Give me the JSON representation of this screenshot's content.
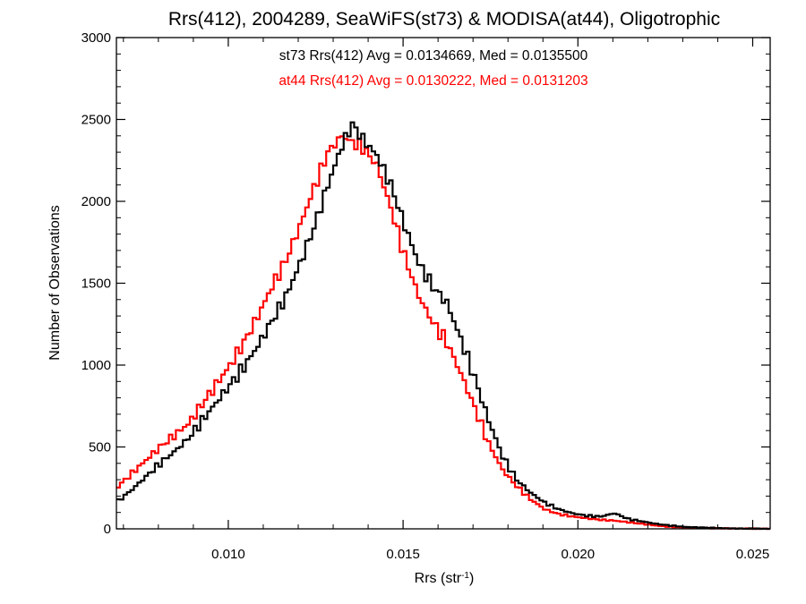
{
  "chart_data": {
    "type": "line",
    "title": "Rrs(412), 2004289, SeaWiFS(st73) & MODISA(at44), Oligotrophic",
    "xlabel_base": "Rrs (str",
    "xlabel_sup": "-1",
    "xlabel_close": ")",
    "ylabel": "Number of Observations",
    "xlim": [
      0.0068,
      0.0255
    ],
    "ylim": [
      0,
      3000
    ],
    "x_ticks": [
      0.01,
      0.015,
      0.02,
      0.025
    ],
    "x_tick_labels": [
      "0.010",
      "0.015",
      "0.020",
      "0.025"
    ],
    "y_ticks": [
      0,
      500,
      1000,
      1500,
      2000,
      2500,
      3000
    ],
    "y_tick_labels": [
      "0",
      "500",
      "1000",
      "1500",
      "2000",
      "2500",
      "3000"
    ],
    "grid": false,
    "annotations": [
      {
        "text": "st73 Rrs(412) Avg = 0.0134669, Med = 0.0135500",
        "color": "#000000"
      },
      {
        "text": "at44 Rrs(412) Avg = 0.0130222, Med = 0.0131203",
        "color": "#ff0000"
      }
    ],
    "series": [
      {
        "color": "#000000",
        "x": [
          0.0068,
          0.0072,
          0.0076,
          0.008,
          0.0084,
          0.0088,
          0.0092,
          0.0096,
          0.01,
          0.0104,
          0.0108,
          0.0112,
          0.0116,
          0.012,
          0.0124,
          0.0128,
          0.0132,
          0.0135,
          0.0138,
          0.0142,
          0.0146,
          0.015,
          0.0154,
          0.0158,
          0.0162,
          0.0166,
          0.017,
          0.0174,
          0.0178,
          0.0182,
          0.0186,
          0.019,
          0.0194,
          0.0198,
          0.0202,
          0.0206,
          0.021,
          0.0214,
          0.0218,
          0.0222,
          0.0226,
          0.023,
          0.0235,
          0.024,
          0.0245,
          0.025,
          0.0255
        ],
        "y": [
          170,
          240,
          320,
          400,
          470,
          550,
          660,
          770,
          880,
          990,
          1120,
          1270,
          1420,
          1620,
          1840,
          2100,
          2340,
          2470,
          2380,
          2280,
          2100,
          1850,
          1620,
          1480,
          1380,
          1160,
          920,
          660,
          440,
          300,
          220,
          160,
          120,
          95,
          80,
          75,
          95,
          60,
          45,
          30,
          20,
          12,
          8,
          4,
          2,
          1,
          0
        ]
      },
      {
        "color": "#ff0000",
        "x": [
          0.0068,
          0.0072,
          0.0076,
          0.008,
          0.0084,
          0.0088,
          0.0092,
          0.0096,
          0.01,
          0.0104,
          0.0108,
          0.0112,
          0.0116,
          0.012,
          0.0124,
          0.0128,
          0.0132,
          0.0135,
          0.0138,
          0.0142,
          0.0146,
          0.015,
          0.0154,
          0.0158,
          0.0162,
          0.0166,
          0.017,
          0.0174,
          0.0178,
          0.0182,
          0.0186,
          0.019,
          0.0194,
          0.0198,
          0.0202,
          0.0206,
          0.021,
          0.0214,
          0.0218,
          0.0222,
          0.0226,
          0.023,
          0.0235,
          0.024,
          0.0245,
          0.025,
          0.0255
        ],
        "y": [
          260,
          340,
          420,
          500,
          570,
          640,
          760,
          880,
          1000,
          1140,
          1300,
          1480,
          1640,
          1850,
          2080,
          2300,
          2400,
          2360,
          2330,
          2220,
          1960,
          1660,
          1420,
          1260,
          1140,
          950,
          740,
          520,
          360,
          260,
          180,
          120,
          90,
          75,
          65,
          55,
          50,
          40,
          30,
          20,
          12,
          8,
          5,
          3,
          2,
          1,
          0
        ]
      }
    ]
  }
}
